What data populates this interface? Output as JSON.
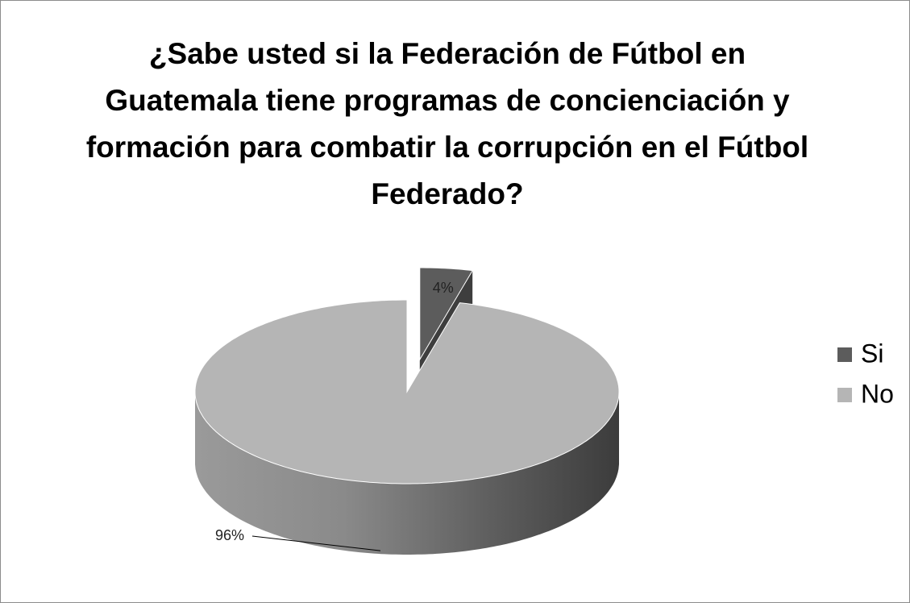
{
  "chart_data": {
    "type": "pie",
    "title": "¿Sabe usted si la Federación de Fútbol en Guatemala tiene programas de concienciación y formación para combatir la corrupción en el Fútbol Federado?",
    "categories": [
      "Si",
      "No"
    ],
    "values": [
      4,
      96
    ],
    "value_labels": [
      "4%",
      "96%"
    ],
    "colors": [
      "#5c5c5c",
      "#b5b5b5"
    ],
    "legend": "right"
  }
}
